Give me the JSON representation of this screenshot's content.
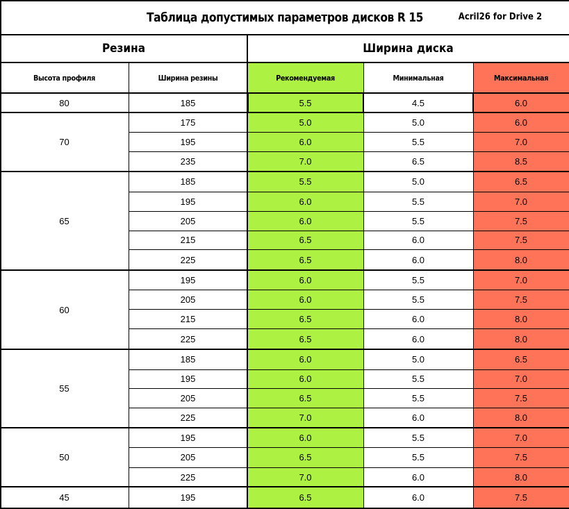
{
  "title": "Таблица допустимых параметров дисков R 15",
  "credit": "Acril26  for Drive 2",
  "headers": {
    "tyre_group": "Резина",
    "rim_group": "Ширина диска",
    "profile": "Высота профиля",
    "tyre_width": "Ширина резины",
    "recommended": "Рекомендуемая",
    "minimum": "Минимальная",
    "maximum": "Максимальная"
  },
  "colors": {
    "recommended": "#adf242",
    "maximum": "#ff7458",
    "grid": "#000000",
    "background": "#ffffff"
  },
  "groups": [
    {
      "profile": "80",
      "rows": [
        {
          "width": "185",
          "rec": "5.5",
          "min": "4.5",
          "max": "6.0"
        }
      ]
    },
    {
      "profile": "70",
      "rows": [
        {
          "width": "175",
          "rec": "5.0",
          "min": "5.0",
          "max": "6.0"
        },
        {
          "width": "195",
          "rec": "6.0",
          "min": "5.5",
          "max": "7.0"
        },
        {
          "width": "235",
          "rec": "7.0",
          "min": "6.5",
          "max": "8.5"
        }
      ]
    },
    {
      "profile": "65",
      "rows": [
        {
          "width": "185",
          "rec": "5.5",
          "min": "5.0",
          "max": "6.5"
        },
        {
          "width": "195",
          "rec": "6.0",
          "min": "5.5",
          "max": "7.0"
        },
        {
          "width": "205",
          "rec": "6.0",
          "min": "5.5",
          "max": "7.5"
        },
        {
          "width": "215",
          "rec": "6.5",
          "min": "6.0",
          "max": "7.5"
        },
        {
          "width": "225",
          "rec": "6.5",
          "min": "6.0",
          "max": "8.0"
        }
      ]
    },
    {
      "profile": "60",
      "rows": [
        {
          "width": "195",
          "rec": "6.0",
          "min": "5.5",
          "max": "7.0"
        },
        {
          "width": "205",
          "rec": "6.0",
          "min": "5.5",
          "max": "7.5"
        },
        {
          "width": "215",
          "rec": "6.5",
          "min": "6.0",
          "max": "8.0"
        },
        {
          "width": "225",
          "rec": "6.5",
          "min": "6.0",
          "max": "8.0"
        }
      ]
    },
    {
      "profile": "55",
      "rows": [
        {
          "width": "185",
          "rec": "6.0",
          "min": "5.0",
          "max": "6.5"
        },
        {
          "width": "195",
          "rec": "6.0",
          "min": "5.5",
          "max": "7.0"
        },
        {
          "width": "205",
          "rec": "6.5",
          "min": "5.5",
          "max": "7.5"
        },
        {
          "width": "225",
          "rec": "7.0",
          "min": "6.0",
          "max": "8.0"
        }
      ]
    },
    {
      "profile": "50",
      "rows": [
        {
          "width": "195",
          "rec": "6.0",
          "min": "5.5",
          "max": "7.0"
        },
        {
          "width": "205",
          "rec": "6.5",
          "min": "5.5",
          "max": "7.5"
        },
        {
          "width": "225",
          "rec": "7.0",
          "min": "6.0",
          "max": "8.0"
        }
      ]
    },
    {
      "profile": "45",
      "rows": [
        {
          "width": "195",
          "rec": "6.5",
          "min": "6.0",
          "max": "7.5"
        }
      ]
    }
  ]
}
